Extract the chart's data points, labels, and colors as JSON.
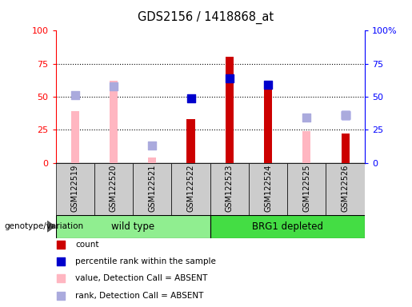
{
  "title": "GDS2156 / 1418868_at",
  "samples": [
    "GSM122519",
    "GSM122520",
    "GSM122521",
    "GSM122522",
    "GSM122523",
    "GSM122524",
    "GSM122525",
    "GSM122526"
  ],
  "count": [
    null,
    null,
    null,
    33,
    80,
    58,
    null,
    22
  ],
  "percentile_rank": [
    null,
    null,
    null,
    49,
    64,
    59,
    null,
    36
  ],
  "value_absent": [
    39,
    62,
    4,
    null,
    null,
    null,
    24,
    null
  ],
  "rank_absent": [
    51,
    58,
    13,
    null,
    null,
    null,
    34,
    36
  ],
  "bar_color_count": "#CC0000",
  "bar_color_rank": "#0000CC",
  "bar_color_value_absent": "#FFB6C1",
  "bar_color_rank_absent": "#AAAADD",
  "ylim": [
    0,
    100
  ],
  "yticks": [
    0,
    25,
    50,
    75,
    100
  ],
  "legend_items": [
    {
      "label": "count",
      "color": "#CC0000"
    },
    {
      "label": "percentile rank within the sample",
      "color": "#0000CC"
    },
    {
      "label": "value, Detection Call = ABSENT",
      "color": "#FFB6C1"
    },
    {
      "label": "rank, Detection Call = ABSENT",
      "color": "#AAAADD"
    }
  ],
  "group_label": "genotype/variation",
  "group_spans": [
    {
      "name": "wild type",
      "start": 0,
      "end": 4,
      "color": "#90EE90"
    },
    {
      "name": "BRG1 depleted",
      "start": 4,
      "end": 8,
      "color": "#44DD44"
    }
  ],
  "bar_width": 0.3,
  "dot_size": 55,
  "n_samples": 8
}
